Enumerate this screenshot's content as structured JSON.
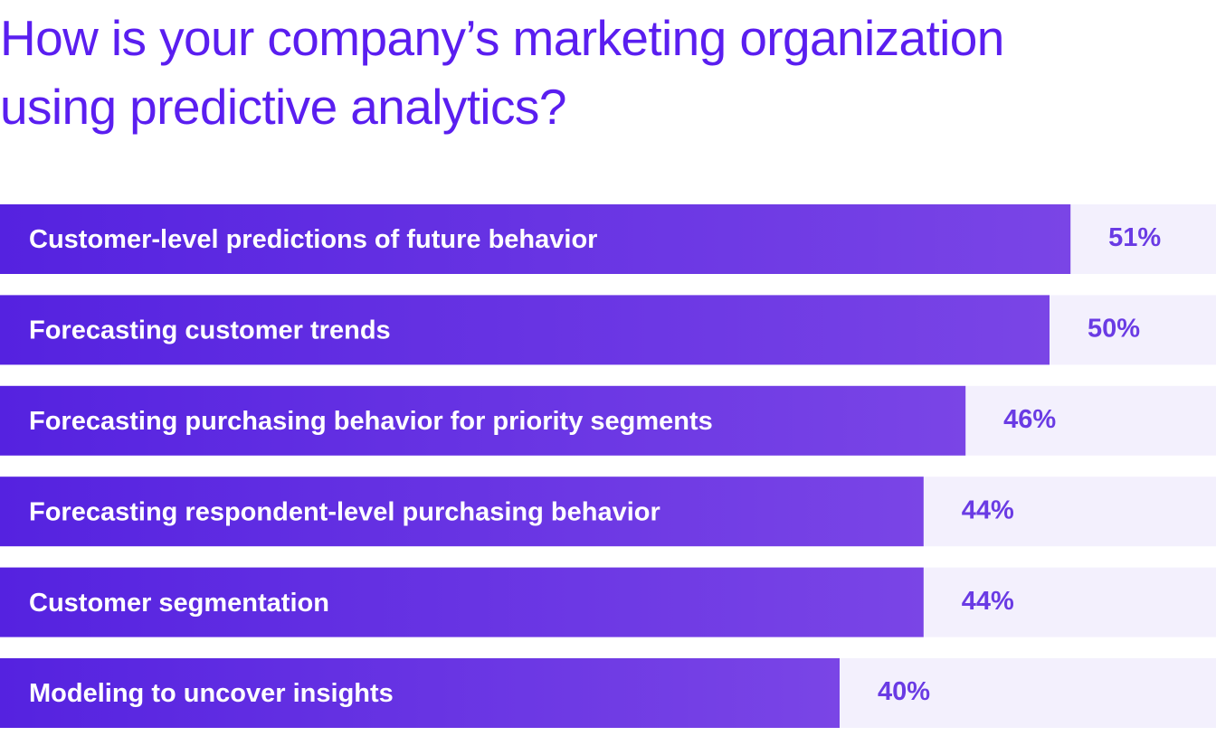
{
  "chart_data": {
    "type": "bar",
    "orientation": "horizontal",
    "title": "How is your company’s marketing organization using predictive analytics?",
    "categories": [
      "Customer-level predictions of future behavior",
      "Forecasting customer trends",
      "Forecasting purchasing behavior for priority segments",
      "Forecasting respondent-level purchasing behavior",
      "Customer segmentation",
      "Modeling to uncover insights"
    ],
    "values": [
      51,
      50,
      46,
      44,
      44,
      40
    ],
    "value_labels": [
      "51%",
      "50%",
      "46%",
      "44%",
      "44%",
      "40%"
    ]
  }
}
